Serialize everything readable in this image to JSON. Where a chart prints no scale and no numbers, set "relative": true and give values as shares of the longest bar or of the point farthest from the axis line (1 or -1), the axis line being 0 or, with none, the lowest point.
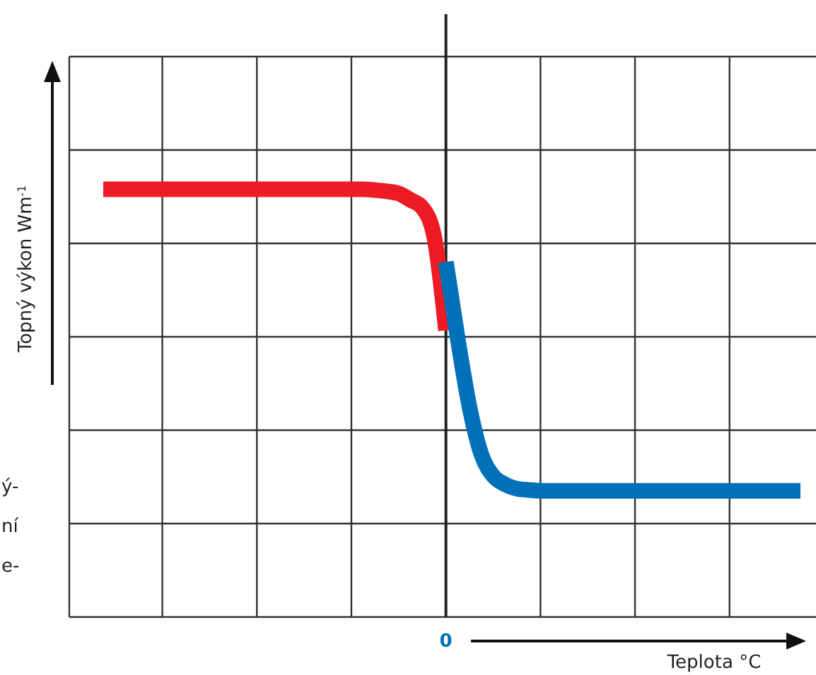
{
  "chart_data": {
    "type": "line",
    "relative": true,
    "xlabel": "Teplota °C",
    "ylabel": "Topný výkon Wm$^{-1}$",
    "categories": [
      null,
      null,
      null,
      null,
      null,
      null,
      null,
      null,
      null,
      null,
      null,
      null,
      null,
      null,
      null,
      null,
      null,
      null,
      null,
      null,
      null,
      null,
      null,
      null,
      null,
      null,
      null,
      null,
      null,
      null,
      null,
      null,
      null,
      null,
      null,
      null,
      null,
      null,
      null,
      null,
      null,
      null,
      null,
      null,
      null,
      null,
      null,
      null,
      null,
      null,
      null,
      null,
      null,
      null,
      null,
      null,
      null,
      null,
      null,
      null
    ],
    "grid": true,
    "marker": "none",
    "line_style": "solid",
    "annotations": [
      "0",
      "ý-",
      "ní",
      "e-"
    ],
    "series": [
      {
        "color": "#ed1c24",
        "values": [
          1,
          1,
          1,
          1,
          1,
          1,
          1,
          1,
          1,
          1,
          1,
          1,
          1,
          1,
          1,
          1,
          1,
          1,
          1,
          1,
          1,
          1,
          1,
          0.998,
          0.995,
          0.99,
          0.975,
          0.957,
          0.89,
          0.67,
          null,
          null,
          null,
          null,
          null,
          null,
          null,
          null,
          null,
          null,
          null,
          null,
          null,
          null,
          null,
          null,
          null,
          null,
          null,
          null,
          null,
          null,
          null,
          null,
          null,
          null,
          null,
          null,
          null,
          null
        ]
      },
      {
        "color": "#0070b8",
        "values": [
          null,
          null,
          null,
          null,
          null,
          null,
          null,
          null,
          null,
          null,
          null,
          null,
          null,
          null,
          null,
          null,
          null,
          null,
          null,
          null,
          null,
          null,
          null,
          null,
          null,
          null,
          null,
          null,
          null,
          0.83,
          0.65,
          0.49,
          0.38,
          0.33,
          0.31,
          0.3,
          0.297,
          0.295,
          0.295,
          0.295,
          0.295,
          0.295,
          0.295,
          0.295,
          0.295,
          0.295,
          0.295,
          0.295,
          0.295,
          0.295,
          0.295,
          0.295,
          0.295,
          0.295,
          0.295,
          0.295,
          0.295,
          0.295,
          0.295,
          0.295
        ]
      }
    ]
  }
}
